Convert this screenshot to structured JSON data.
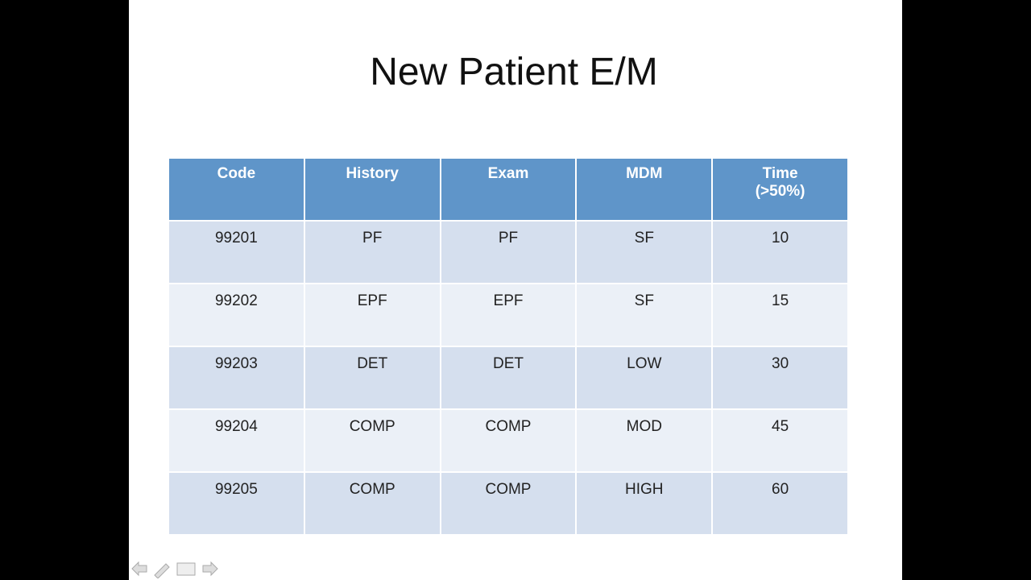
{
  "slide": {
    "title": "New Patient E/M",
    "table": {
      "header": [
        "Code",
        "History",
        "Exam",
        "MDM",
        "Time\n(>50%)"
      ],
      "rows": [
        [
          "99201",
          "PF",
          "PF",
          "SF",
          "10"
        ],
        [
          "99202",
          "EPF",
          "EPF",
          "SF",
          "15"
        ],
        [
          "99203",
          "DET",
          "DET",
          "LOW",
          "30"
        ],
        [
          "99204",
          "COMP",
          "COMP",
          "MOD",
          "45"
        ],
        [
          "99205",
          "COMP",
          "COMP",
          "HIGH",
          "60"
        ]
      ]
    }
  }
}
